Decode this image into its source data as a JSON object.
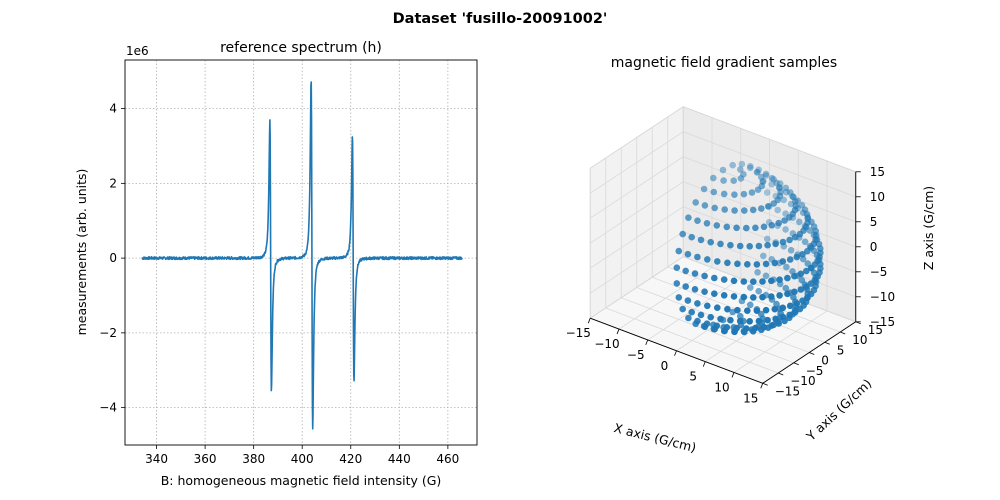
{
  "figure": {
    "suptitle": "Dataset 'fusillo-20091002'"
  },
  "chart_data": [
    {
      "type": "line",
      "title": "reference spectrum (h)",
      "xlabel": "B: homogeneous magnetic field intensity (G)",
      "ylabel": "measurements (arb. units)",
      "y_offset_label": "1e6",
      "xlim": [
        327,
        472
      ],
      "ylim": [
        -5.0,
        5.3
      ],
      "xticks": [
        340,
        360,
        380,
        400,
        420,
        440,
        460
      ],
      "yticks": [
        -4,
        -2,
        0,
        2,
        4
      ],
      "ytick_labels": [
        "−4",
        "−2",
        "0",
        "2",
        "4"
      ],
      "grid": true,
      "series": [
        {
          "color": "#1f77b4",
          "peaks": [
            {
              "center": 387.0,
              "max": 3.7,
              "min": -3.55
            },
            {
              "center": 404.0,
              "max": 4.8,
              "min": -4.55
            },
            {
              "center": 421.0,
              "max": 3.28,
              "min": -3.3
            }
          ],
          "x_range": [
            334,
            466
          ]
        }
      ]
    },
    {
      "type": "scatter3d",
      "title": "magnetic field gradient samples",
      "xlabel": "X axis (G/cm)",
      "ylabel": "Y axis (G/cm)",
      "zlabel": "Z axis (G/cm)",
      "xlim": [
        -15,
        15
      ],
      "ylim": [
        -15,
        15
      ],
      "zlim": [
        -15,
        15
      ],
      "ticks": [
        -15,
        -10,
        -5,
        0,
        5,
        10,
        15
      ],
      "tick_labels": [
        "−15",
        "−10",
        "−5",
        "0",
        "5",
        "10",
        "15"
      ],
      "points_description": "samples on a hemisphere of radius 15 G/cm",
      "radius": 15,
      "color": "#1f77b4"
    }
  ]
}
